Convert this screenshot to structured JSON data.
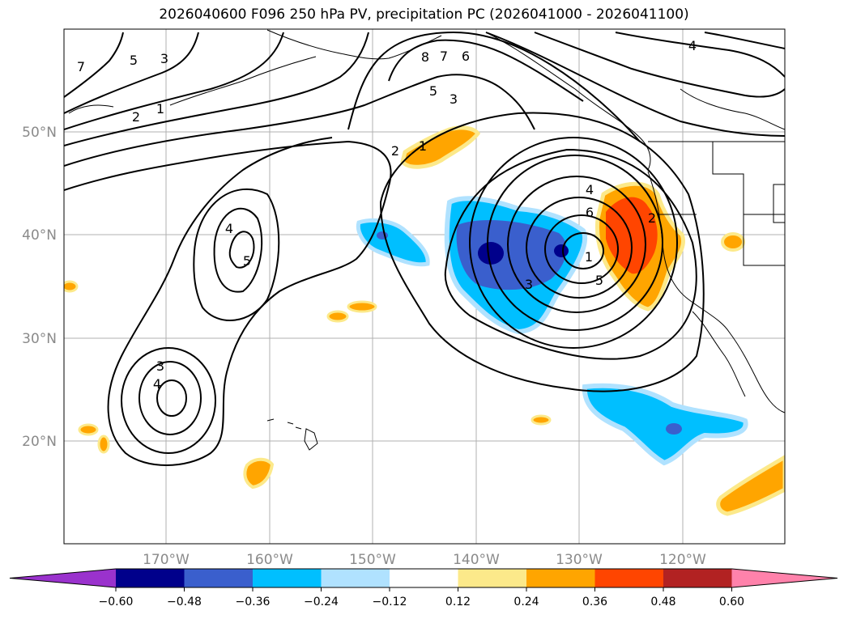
{
  "title": "2026040600 F096 250 hPa PV, precipitation PC (2026041000 - 2026041100)",
  "map": {
    "lat_labels": [
      "50°N",
      "40°N",
      "30°N",
      "20°N"
    ],
    "lon_labels": [
      "170°W",
      "160°W",
      "150°W",
      "140°W",
      "130°W",
      "120°W"
    ],
    "pv_contour_labels": [
      "7",
      "5",
      "3",
      "1",
      "2",
      "8",
      "7",
      "6",
      "5",
      "3",
      "2",
      "1",
      "4",
      "5",
      "4",
      "6",
      "1",
      "5",
      "3",
      "2",
      "3",
      "4",
      "4"
    ]
  },
  "colorbar": {
    "tick_labels": [
      "−0.60",
      "−0.48",
      "−0.36",
      "−0.24",
      "−0.12",
      "0.12",
      "0.24",
      "0.36",
      "0.48",
      "0.60"
    ],
    "colors": [
      "#9a32cd",
      "#00008b",
      "#3a5fcd",
      "#00bfff",
      "#b0e2ff",
      "#ffffff",
      "#fce98a",
      "#ffa500",
      "#ff4500",
      "#b22222",
      "#ff82ab"
    ]
  }
}
